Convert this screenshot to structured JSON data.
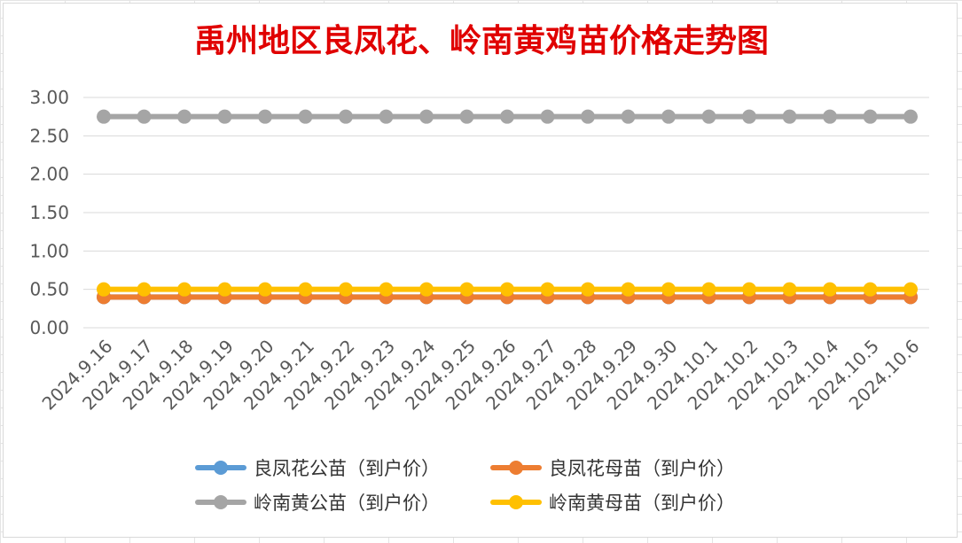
{
  "chart_data": {
    "type": "line",
    "title": "禹州地区良凤花、岭南黄鸡苗价格走势图",
    "xlabel": "",
    "ylabel": "",
    "categories": [
      "2024.9.16",
      "2024.9.17",
      "2024.9.18",
      "2024.9.19",
      "2024.9.20",
      "2024.9.21",
      "2024.9.22",
      "2024.9.23",
      "2024.9.24",
      "2024.9.25",
      "2024.9.26",
      "2024.9.27",
      "2024.9.28",
      "2024.9.29",
      "2024.9.30",
      "2024.10.1",
      "2024.10.2",
      "2024.10.3",
      "2024.10.4",
      "2024.10.5",
      "2024.10.6"
    ],
    "ylim": [
      0,
      3.0
    ],
    "yticks": [
      "0.00",
      "0.50",
      "1.00",
      "1.50",
      "2.00",
      "2.50",
      "3.00"
    ],
    "grid": "horizontal",
    "legend_position": "bottom",
    "series": [
      {
        "name": "良凤花公苗（到户价）",
        "color": "#5B9BD5",
        "values": [
          0.4,
          0.4,
          0.4,
          0.4,
          0.4,
          0.4,
          0.4,
          0.4,
          0.4,
          0.4,
          0.4,
          0.4,
          0.4,
          0.4,
          0.4,
          0.4,
          0.4,
          0.4,
          0.4,
          0.4,
          0.4
        ]
      },
      {
        "name": "良凤花母苗（到户价）",
        "color": "#ED7D31",
        "values": [
          0.4,
          0.4,
          0.4,
          0.4,
          0.4,
          0.4,
          0.4,
          0.4,
          0.4,
          0.4,
          0.4,
          0.4,
          0.4,
          0.4,
          0.4,
          0.4,
          0.4,
          0.4,
          0.4,
          0.4,
          0.4
        ]
      },
      {
        "name": "岭南黄公苗（到户价）",
        "color": "#A5A5A5",
        "values": [
          2.75,
          2.75,
          2.75,
          2.75,
          2.75,
          2.75,
          2.75,
          2.75,
          2.75,
          2.75,
          2.75,
          2.75,
          2.75,
          2.75,
          2.75,
          2.75,
          2.75,
          2.75,
          2.75,
          2.75,
          2.75
        ]
      },
      {
        "name": "岭南黄母苗（到户价）",
        "color": "#FFC000",
        "values": [
          0.5,
          0.5,
          0.5,
          0.5,
          0.5,
          0.5,
          0.5,
          0.5,
          0.5,
          0.5,
          0.5,
          0.5,
          0.5,
          0.5,
          0.5,
          0.5,
          0.5,
          0.5,
          0.5,
          0.5,
          0.5
        ]
      }
    ]
  },
  "colors": {
    "title": "#E00000",
    "axis_text": "#595959",
    "gridline": "#d9d9d9"
  }
}
